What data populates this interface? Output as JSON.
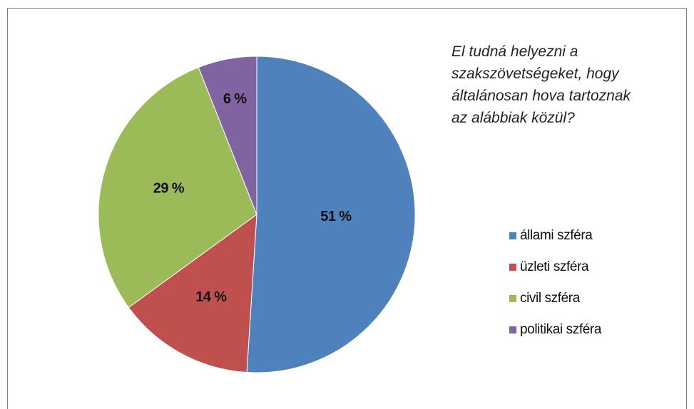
{
  "chart_data": {
    "type": "pie",
    "title_lines": [
      "El tudná helyezni a",
      "szakszövetségeket, hogy",
      "általánosan hova tartoznak",
      "az alábbiak közül?"
    ],
    "legend_position": "right",
    "slices": [
      {
        "label": "állami szféra",
        "value": 51,
        "value_label": "51 %",
        "color": "#4f81bd"
      },
      {
        "label": "üzleti szféra",
        "value": 14,
        "value_label": "14 %",
        "color": "#c0504d"
      },
      {
        "label": "civil szféra",
        "value": 29,
        "value_label": "29 %",
        "color": "#9bbb59"
      },
      {
        "label": "politikai szféra",
        "value": 6,
        "value_label": "6 %",
        "color": "#8064a2"
      }
    ]
  }
}
